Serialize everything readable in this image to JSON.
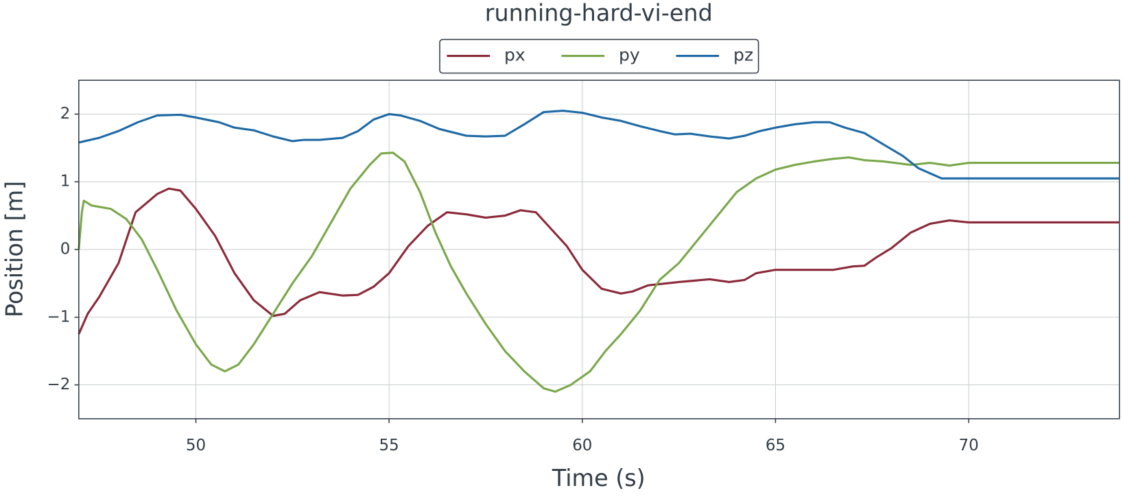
{
  "chart_data": {
    "type": "line",
    "title": "running-hard-vi-end",
    "xlabel": "Time (s)",
    "ylabel": "Position [m]",
    "xlim": [
      46.97,
      73.9
    ],
    "ylim": [
      -2.5,
      2.5
    ],
    "xticks": [
      50,
      55,
      60,
      65,
      70
    ],
    "yticks": [
      {
        "value": -2,
        "label": "−2"
      },
      {
        "value": -1,
        "label": "−1"
      },
      0,
      1,
      2
    ],
    "grid": true,
    "legend": "upper center",
    "series": [
      {
        "name": "px",
        "color": "#8b2a3a",
        "x": [
          46.97,
          47.2,
          47.5,
          48,
          48.44,
          49,
          49.3,
          49.6,
          50,
          50.5,
          51,
          51.5,
          52,
          52.3,
          52.7,
          53.2,
          53.8,
          54.2,
          54.6,
          55,
          55.5,
          56,
          56.5,
          57,
          57.5,
          58,
          58.4,
          58.8,
          59.2,
          59.6,
          60,
          60.5,
          61,
          61.3,
          61.7,
          62.5,
          63.3,
          63.8,
          64.2,
          64.5,
          65,
          66,
          66.5,
          67,
          67.3,
          67.6,
          68,
          68.5,
          69,
          69.5,
          70,
          71,
          73.9
        ],
        "values": [
          -1.25,
          -0.95,
          -0.7,
          -0.2,
          0.55,
          0.82,
          0.9,
          0.87,
          0.6,
          0.2,
          -0.35,
          -0.75,
          -0.98,
          -0.95,
          -0.75,
          -0.63,
          -0.68,
          -0.67,
          -0.55,
          -0.35,
          0.05,
          0.35,
          0.55,
          0.52,
          0.47,
          0.5,
          0.58,
          0.55,
          0.3,
          0.05,
          -0.3,
          -0.58,
          -0.65,
          -0.62,
          -0.53,
          -0.48,
          -0.44,
          -0.48,
          -0.45,
          -0.35,
          -0.3,
          -0.3,
          -0.3,
          -0.25,
          -0.24,
          -0.12,
          0.02,
          0.25,
          0.38,
          0.43,
          0.4,
          0.4,
          0.4
        ]
      },
      {
        "name": "py",
        "color": "#7aa84b",
        "x": [
          46.97,
          47.05,
          47.1,
          47.3,
          47.8,
          48.2,
          48.6,
          49,
          49.5,
          50,
          50.4,
          50.75,
          51.1,
          51.5,
          52,
          52.5,
          53,
          53.5,
          54,
          54.5,
          54.8,
          55.1,
          55.4,
          55.8,
          56.2,
          56.6,
          57,
          57.5,
          58,
          58.5,
          59,
          59.3,
          59.7,
          60.2,
          60.6,
          61,
          61.5,
          62,
          62.5,
          63,
          63.5,
          64,
          64.5,
          65,
          65.5,
          66,
          66.5,
          66.9,
          67.3,
          67.8,
          68.5,
          69,
          69.5,
          70,
          71,
          73.9
        ],
        "values": [
          0,
          0.55,
          0.72,
          0.65,
          0.6,
          0.45,
          0.15,
          -0.3,
          -0.9,
          -1.4,
          -1.7,
          -1.8,
          -1.7,
          -1.4,
          -0.95,
          -0.5,
          -0.1,
          0.4,
          0.9,
          1.25,
          1.42,
          1.43,
          1.3,
          0.85,
          0.25,
          -0.25,
          -0.65,
          -1.1,
          -1.5,
          -1.8,
          -2.05,
          -2.1,
          -2,
          -1.8,
          -1.5,
          -1.25,
          -0.9,
          -0.45,
          -0.2,
          0.15,
          0.5,
          0.85,
          1.05,
          1.18,
          1.25,
          1.3,
          1.34,
          1.36,
          1.32,
          1.3,
          1.25,
          1.28,
          1.24,
          1.28,
          1.28,
          1.28
        ]
      },
      {
        "name": "pz",
        "color": "#1f6aa5",
        "x": [
          46.97,
          47.5,
          48,
          48.5,
          49,
          49.6,
          50,
          50.6,
          51,
          51.5,
          52,
          52.5,
          52.8,
          53.2,
          53.8,
          54.2,
          54.6,
          55,
          55.3,
          55.8,
          56.3,
          57,
          57.5,
          58,
          58.5,
          59,
          59.5,
          60,
          60.5,
          61,
          61.5,
          62,
          62.4,
          62.8,
          63.3,
          63.8,
          64.2,
          64.6,
          65,
          65.5,
          66,
          66.4,
          66.8,
          67.3,
          67.8,
          68.3,
          68.7,
          69.3,
          70,
          73.9
        ],
        "values": [
          1.58,
          1.65,
          1.75,
          1.88,
          1.98,
          1.99,
          1.95,
          1.88,
          1.8,
          1.76,
          1.67,
          1.6,
          1.62,
          1.62,
          1.65,
          1.75,
          1.92,
          2,
          1.98,
          1.9,
          1.78,
          1.68,
          1.67,
          1.68,
          1.85,
          2.03,
          2.05,
          2.02,
          1.95,
          1.9,
          1.82,
          1.75,
          1.7,
          1.71,
          1.67,
          1.64,
          1.68,
          1.75,
          1.8,
          1.85,
          1.88,
          1.88,
          1.8,
          1.72,
          1.55,
          1.38,
          1.2,
          1.05,
          1.05,
          1.05
        ]
      }
    ]
  }
}
